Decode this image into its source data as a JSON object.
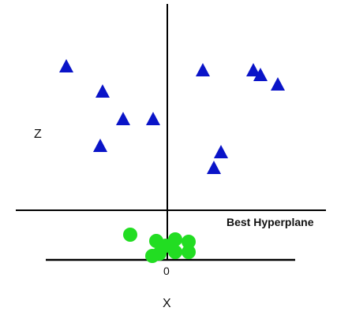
{
  "diagram": {
    "labels": {
      "z_axis": "Z",
      "x_axis": "X",
      "origin": "0",
      "hyperplane": "Best Hyperplane"
    },
    "colors": {
      "triangle": "#0a14c8",
      "circle": "#22dd22",
      "line": "#000000"
    },
    "classes": [
      {
        "shape": "triangle",
        "count": 11
      },
      {
        "shape": "circle",
        "count": 9
      }
    ]
  }
}
